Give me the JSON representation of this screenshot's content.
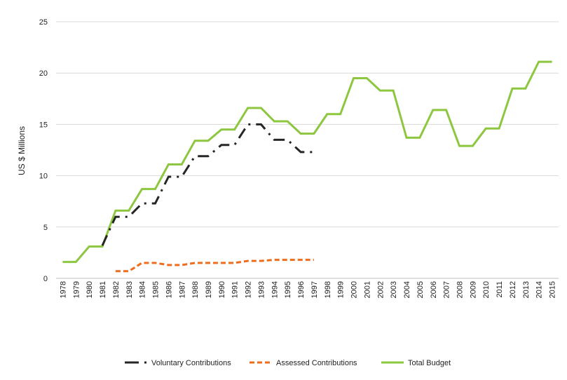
{
  "chart_data": {
    "type": "line",
    "title": "",
    "xlabel": "",
    "ylabel": "US $ Millions",
    "ylim": [
      0,
      25
    ],
    "yticks": [
      0,
      5,
      10,
      15,
      20,
      25
    ],
    "grid": "horizontal",
    "legend_position": "bottom",
    "categories": [
      "1978",
      "1979",
      "1980",
      "1981",
      "1982",
      "1983",
      "1984",
      "1985",
      "1986",
      "1987",
      "1988",
      "1989",
      "1990",
      "1991",
      "1992",
      "1993",
      "1994",
      "1995",
      "1996",
      "1997",
      "1998",
      "1999",
      "2000",
      "2001",
      "2002",
      "2003",
      "2004",
      "2005",
      "2006",
      "2007",
      "2008",
      "2009",
      "2010",
      "2011",
      "2012",
      "2013",
      "2014",
      "2015"
    ],
    "series": [
      {
        "name": "Voluntary Contributions",
        "color": "#262626",
        "style": "long-dash-dot",
        "values": [
          null,
          null,
          null,
          3.2,
          6.0,
          6.0,
          7.3,
          7.3,
          9.9,
          9.9,
          11.9,
          11.9,
          13.0,
          13.0,
          15.0,
          15.0,
          13.5,
          13.5,
          12.3,
          12.3,
          null,
          null,
          null,
          null,
          null,
          null,
          null,
          null,
          null,
          null,
          null,
          null,
          null,
          null,
          null,
          null,
          null,
          null
        ]
      },
      {
        "name": "Assessed Contributions",
        "color": "#ED6D1D",
        "style": "dash",
        "values": [
          null,
          null,
          null,
          null,
          0.7,
          0.7,
          1.5,
          1.5,
          1.3,
          1.3,
          1.5,
          1.5,
          1.5,
          1.5,
          1.7,
          1.7,
          1.8,
          1.8,
          1.8,
          1.8,
          null,
          null,
          null,
          null,
          null,
          null,
          null,
          null,
          null,
          null,
          null,
          null,
          null,
          null,
          null,
          null,
          null,
          null
        ]
      },
      {
        "name": "Total Budget",
        "color": "#8DC63F",
        "style": "solid",
        "values": [
          1.6,
          1.6,
          3.1,
          3.1,
          6.6,
          6.6,
          8.7,
          8.7,
          11.1,
          11.1,
          13.4,
          13.4,
          14.5,
          14.5,
          16.6,
          16.6,
          15.3,
          15.3,
          14.1,
          14.1,
          16.0,
          16.0,
          19.5,
          19.5,
          18.3,
          18.3,
          13.7,
          13.7,
          16.4,
          16.4,
          12.9,
          12.9,
          14.6,
          14.6,
          18.5,
          18.5,
          21.1,
          21.1
        ]
      }
    ]
  }
}
